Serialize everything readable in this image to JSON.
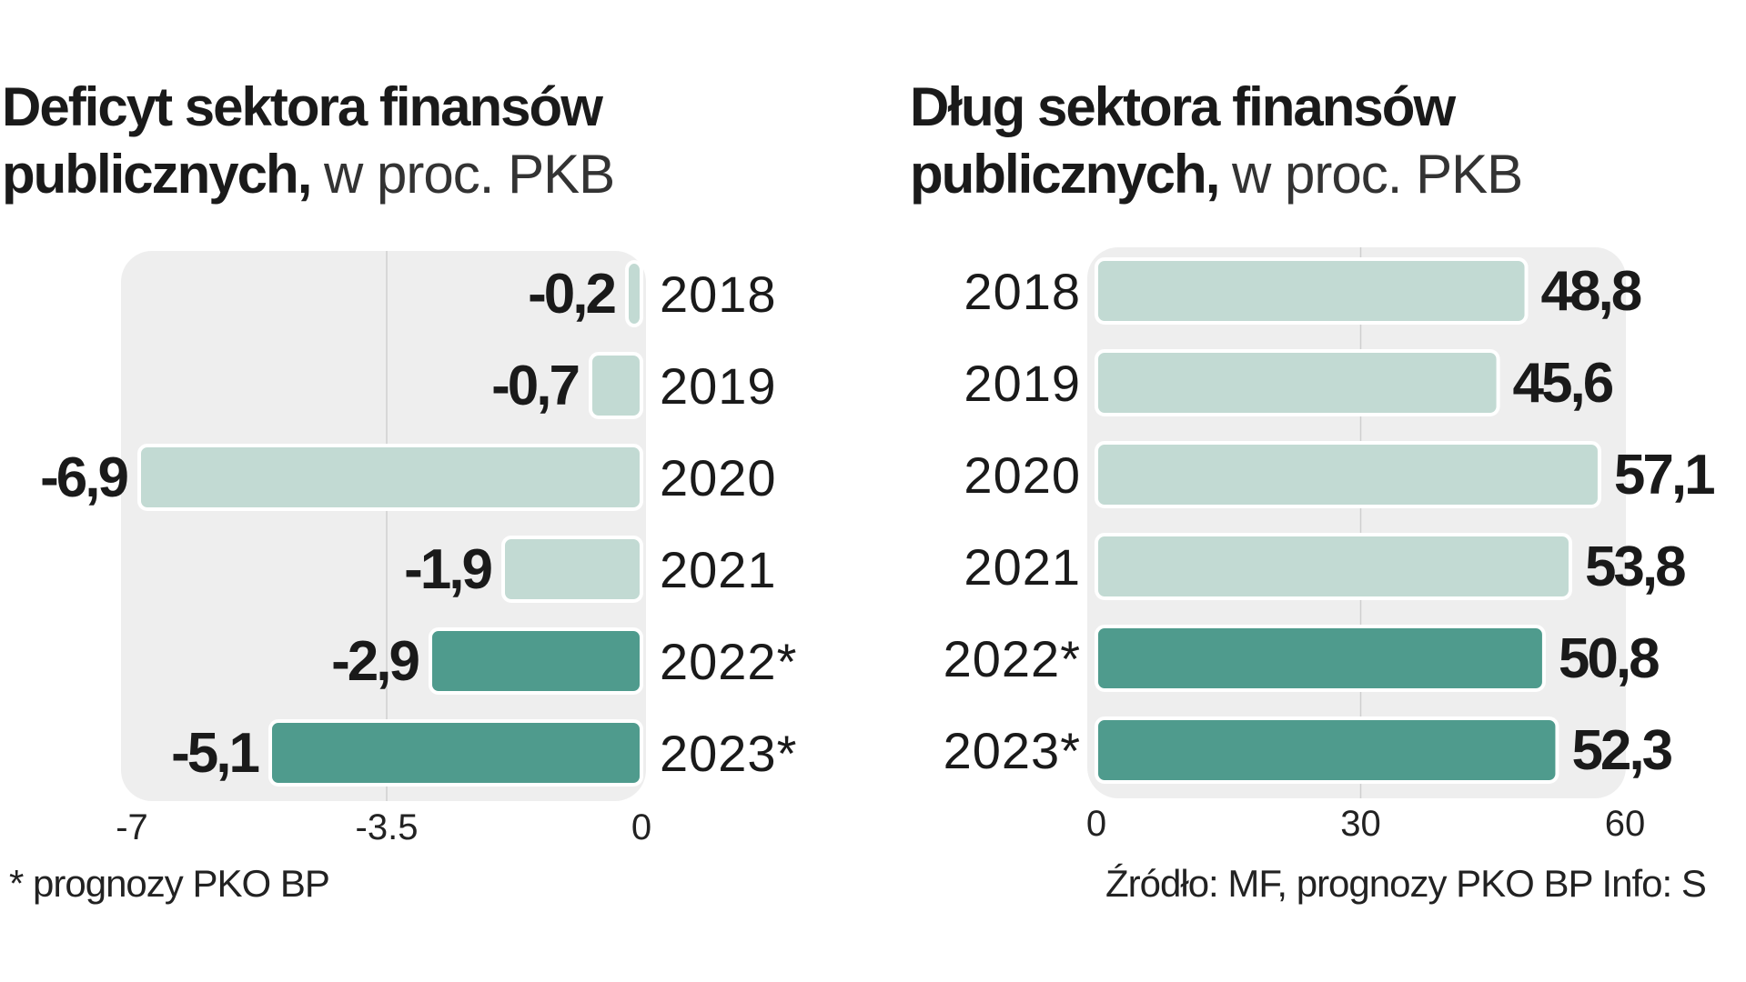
{
  "chart_data": [
    {
      "type": "bar",
      "orientation": "horizontal",
      "title": "Deficyt sektora finansów publicznych,",
      "subtitle": "w proc. PKB",
      "categories": [
        "2018",
        "2019",
        "2020",
        "2021",
        "2022*",
        "2023*"
      ],
      "values": [
        -0.2,
        -0.7,
        -6.9,
        -1.9,
        -2.9,
        -5.1
      ],
      "value_labels": [
        "-0,2",
        "-0,7",
        "-6,9",
        "-1,9",
        "-2,9",
        "-5,1"
      ],
      "forecast": [
        false,
        false,
        false,
        false,
        true,
        true
      ],
      "xlim": [
        -7,
        0
      ],
      "xticks": [
        -7,
        -3.5,
        0
      ],
      "xtick_labels": [
        "-7",
        "-3.5",
        "0"
      ],
      "grid": true
    },
    {
      "type": "bar",
      "orientation": "horizontal",
      "title": "Dług sektora finansów publicznych,",
      "subtitle": "w proc. PKB",
      "categories": [
        "2018",
        "2019",
        "2020",
        "2021",
        "2022*",
        "2023*"
      ],
      "values": [
        48.8,
        45.6,
        57.1,
        53.8,
        50.8,
        52.3
      ],
      "value_labels": [
        "48,8",
        "45,6",
        "57,1",
        "53,8",
        "50,8",
        "52,3"
      ],
      "forecast": [
        false,
        false,
        false,
        false,
        true,
        true
      ],
      "xlim": [
        0,
        60
      ],
      "xticks": [
        0,
        30,
        60
      ],
      "xtick_labels": [
        "0",
        "30",
        "60"
      ],
      "grid": true
    }
  ],
  "titles": {
    "left_line1": "Deficyt sektora finansów",
    "left_line2_bold": "publicznych,",
    "left_line2_light": "w proc. PKB",
    "right_line1": "Dług sektora finansów",
    "right_line2_bold": "publicznych,",
    "right_line2_light": "w proc. PKB"
  },
  "footnote": "* prognozy PKO BP",
  "source": "Źródło: MF, prognozy PKO BP   Info: S",
  "colors": {
    "actual_bar": "#c2dad3",
    "forecast_bar": "#4f9b8d",
    "panel_bg": "#eeeeee",
    "bar_outline": "#ffffff",
    "grid": "#cfcfcf"
  }
}
